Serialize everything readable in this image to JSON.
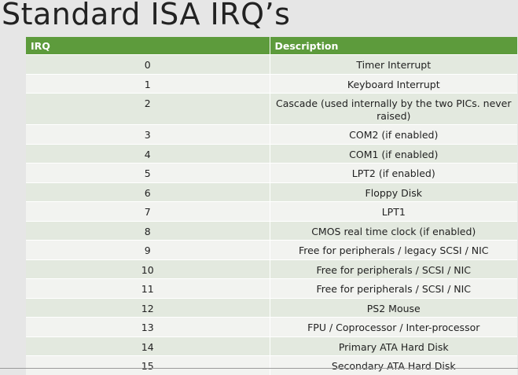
{
  "slide": {
    "title": "Standard ISA IRQ’s"
  },
  "table": {
    "headers": [
      "IRQ",
      "Description"
    ],
    "rows": [
      {
        "irq": "0",
        "description": "Timer Interrupt"
      },
      {
        "irq": "1",
        "description": "Keyboard Interrupt"
      },
      {
        "irq": "2",
        "description": "Cascade (used internally by the two PICs. never raised)"
      },
      {
        "irq": "3",
        "description": "COM2 (if enabled)"
      },
      {
        "irq": "4",
        "description": "COM1 (if enabled)"
      },
      {
        "irq": "5",
        "description": "LPT2 (if enabled)"
      },
      {
        "irq": "6",
        "description": "Floppy Disk"
      },
      {
        "irq": "7",
        "description": "LPT1"
      },
      {
        "irq": "8",
        "description": "CMOS real time clock (if enabled)"
      },
      {
        "irq": "9",
        "description": "Free for peripherals / legacy SCSI / NIC"
      },
      {
        "irq": "10",
        "description": "Free for peripherals / SCSI / NIC"
      },
      {
        "irq": "11",
        "description": "Free for peripherals / SCSI / NIC"
      },
      {
        "irq": "12",
        "description": "PS2 Mouse"
      },
      {
        "irq": "13",
        "description": "FPU / Coprocessor / Inter-processor"
      },
      {
        "irq": "14",
        "description": "Primary ATA Hard Disk"
      },
      {
        "irq": "15",
        "description": "Secondary ATA Hard Disk"
      }
    ]
  },
  "colors": {
    "header_green": "#5d9b3c",
    "row_odd": "#e3e9df",
    "row_even": "#f2f3f0",
    "background": "#e6e6e6"
  }
}
